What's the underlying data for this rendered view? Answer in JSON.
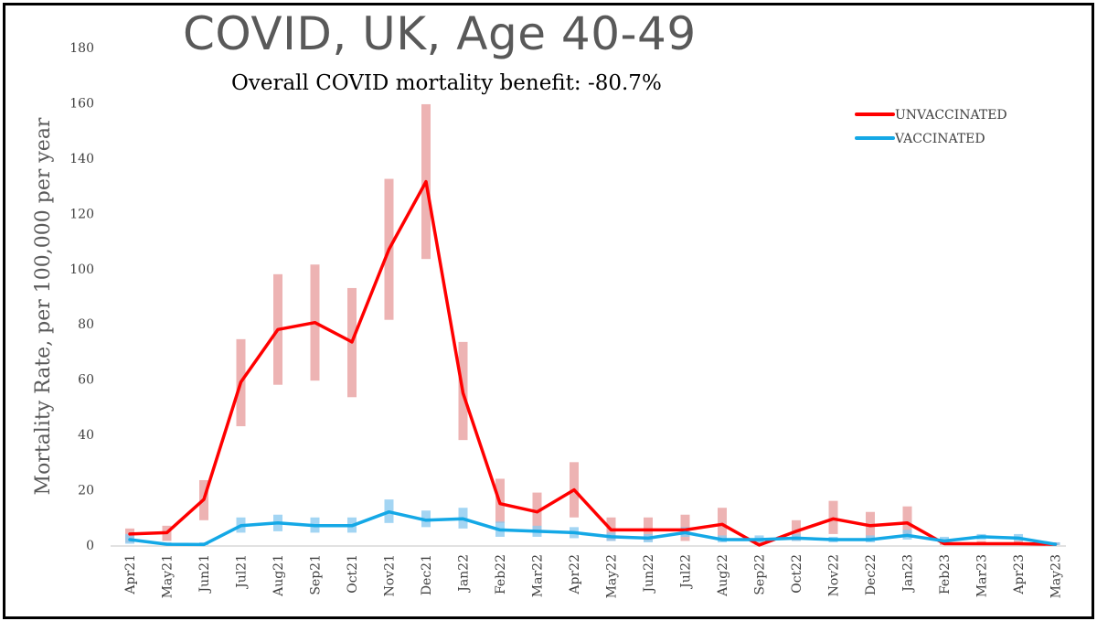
{
  "chart_data": {
    "type": "line",
    "title": "COVID, UK, Age 40-49",
    "subtitle": "Overall COVID mortality benefit: -80.7%",
    "xlabel": "",
    "ylabel": "Mortality Rate, per 100,000 per year",
    "ylim": [
      0,
      180
    ],
    "yticks": [
      "0",
      "20",
      "40",
      "60",
      "80",
      "100",
      "120",
      "140",
      "160",
      "180"
    ],
    "categories": [
      "Apr21",
      "May21",
      "Jun21",
      "Jul21",
      "Aug21",
      "Sep21",
      "Oct21",
      "Nov21",
      "Dec21",
      "Jan22",
      "Feb22",
      "Mar22",
      "Apr22",
      "May22",
      "Jun22",
      "Jul22",
      "Aug22",
      "Sep22",
      "Oct22",
      "Nov22",
      "Dec22",
      "Jan23",
      "Feb23",
      "Mar23",
      "Apr23",
      "May23"
    ],
    "series": [
      {
        "name": "UNVACCINATED",
        "color": "#ff0000",
        "values": [
          4,
          4.5,
          16.5,
          59,
          78,
          80.5,
          73.5,
          107,
          131.5,
          55,
          15,
          12,
          20,
          5.5,
          5.5,
          5.5,
          7.5,
          0,
          5,
          9.5,
          7,
          8,
          0.5,
          0.5,
          0.5,
          0.3
        ],
        "ci_low": [
          1,
          1.5,
          9,
          43,
          58,
          59.5,
          53.5,
          81.5,
          103.5,
          38,
          8,
          5.5,
          10,
          1.5,
          1.5,
          1.5,
          2.5,
          0,
          1.5,
          4,
          2.5,
          3.5,
          0,
          0,
          0,
          0
        ],
        "ci_high": [
          6,
          7,
          23.5,
          74.5,
          98,
          101.5,
          93,
          132.5,
          159.5,
          73.5,
          24,
          19,
          30,
          10,
          10,
          11,
          13.5,
          2,
          9,
          16,
          12,
          14,
          1.5,
          1.5,
          1.5,
          1
        ],
        "ci_color": "#e8a0a0"
      },
      {
        "name": "VACCINATED",
        "color": "#14a8e6",
        "values": [
          2,
          0.3,
          0.2,
          7,
          8,
          7,
          7,
          12,
          9,
          9.5,
          5.5,
          5,
          4.5,
          3,
          2.5,
          4.5,
          2,
          2,
          2.5,
          2,
          2,
          3.5,
          1.5,
          3,
          2.5,
          0.3
        ],
        "ci_low": [
          0.5,
          0,
          0,
          4.5,
          5,
          4.5,
          4.5,
          8,
          6.5,
          6,
          3,
          3,
          2.5,
          1.5,
          1,
          3,
          1,
          1,
          1.5,
          1,
          1,
          2,
          0.5,
          2,
          1.5,
          0
        ],
        "ci_high": [
          4,
          1,
          1,
          10,
          11,
          10,
          10,
          16.5,
          12.5,
          13.5,
          8.5,
          7,
          6.5,
          4.5,
          4,
          6.5,
          3.5,
          3.5,
          4,
          3,
          3.5,
          5.5,
          3,
          4,
          4,
          1
        ],
        "ci_color": "#8ccaf0"
      }
    ]
  },
  "legend": {
    "items": [
      {
        "label": "UNVACCINATED",
        "color": "#ff0000"
      },
      {
        "label": "VACCINATED",
        "color": "#14a8e6"
      }
    ]
  }
}
